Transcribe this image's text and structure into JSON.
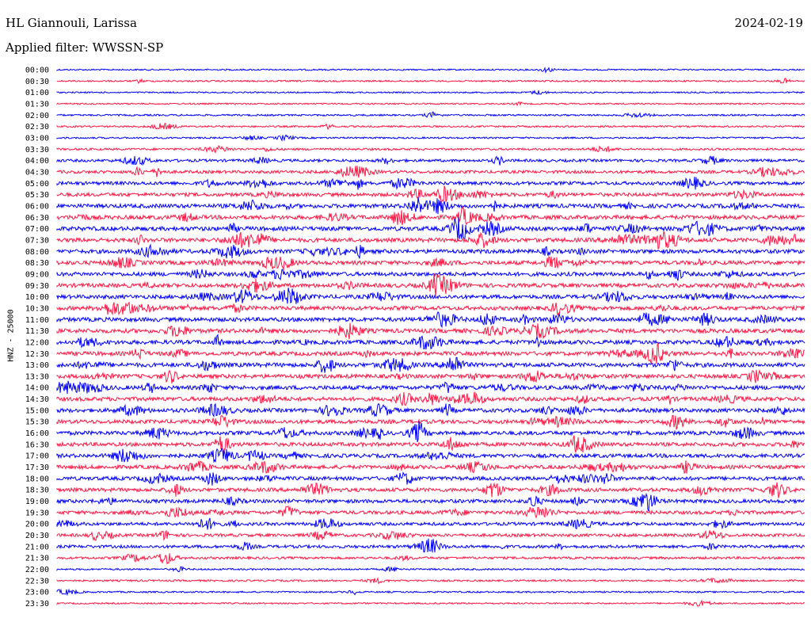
{
  "header": {
    "station": "HL Giannouli, Larissa",
    "date": "2024-02-19",
    "filter": "Applied filter: WWSSN-SP"
  },
  "chart_data": {
    "type": "line",
    "ylabel": "HNZ - 25000",
    "row_labels": [
      "00:00",
      "00:30",
      "01:00",
      "01:30",
      "02:00",
      "02:30",
      "03:00",
      "03:30",
      "04:00",
      "04:30",
      "05:00",
      "05:30",
      "06:00",
      "06:30",
      "07:00",
      "07:30",
      "08:00",
      "08:30",
      "09:00",
      "09:30",
      "10:00",
      "10:30",
      "11:00",
      "11:30",
      "12:00",
      "12:30",
      "13:00",
      "13:30",
      "14:00",
      "14:30",
      "15:00",
      "15:30",
      "16:00",
      "16:30",
      "17:00",
      "17:30",
      "18:00",
      "18:30",
      "19:00",
      "19:30",
      "20:00",
      "20:30",
      "21:00",
      "21:30",
      "22:00",
      "22:30",
      "23:00",
      "23:30"
    ],
    "series_colors": [
      "#0000ff",
      "#ff1744"
    ],
    "relative_activity_per_row": [
      0.1,
      0.12,
      0.08,
      0.1,
      0.14,
      0.15,
      0.14,
      0.22,
      0.35,
      0.4,
      0.48,
      0.52,
      0.6,
      0.62,
      0.64,
      0.62,
      0.6,
      0.6,
      0.58,
      0.6,
      0.58,
      0.6,
      0.62,
      0.64,
      0.62,
      0.6,
      0.64,
      0.6,
      0.62,
      0.6,
      0.58,
      0.58,
      0.58,
      0.56,
      0.56,
      0.56,
      0.54,
      0.54,
      0.52,
      0.5,
      0.44,
      0.4,
      0.4,
      0.28,
      0.14,
      0.16,
      0.12,
      0.1
    ]
  }
}
